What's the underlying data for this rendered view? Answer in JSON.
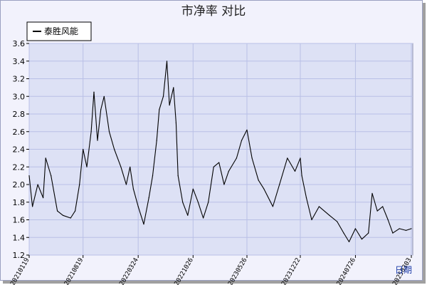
{
  "chart_data": {
    "type": "line",
    "title": "市净率  对比",
    "xlabel": "日期",
    "ylabel": "",
    "ylim": [
      1.2,
      3.6
    ],
    "yticks": [
      1.2,
      1.4,
      1.6,
      1.8,
      2.0,
      2.2,
      2.4,
      2.6,
      2.8,
      3.0,
      3.2,
      3.4,
      3.6
    ],
    "xtick_labels": [
      "20210119",
      "20210819",
      "20220324",
      "20221026",
      "20230526",
      "20231222",
      "20240726",
      "20250303"
    ],
    "grid": true,
    "legend_position": "top-left",
    "series": [
      {
        "name": "泰胜风能",
        "color": "#000000",
        "points": [
          [
            "20210119",
            2.1
          ],
          [
            "20210201",
            1.75
          ],
          [
            "20210222",
            2.0
          ],
          [
            "20210315",
            1.85
          ],
          [
            "20210325",
            2.3
          ],
          [
            "20210415",
            2.1
          ],
          [
            "20210510",
            1.7
          ],
          [
            "20210601",
            1.65
          ],
          [
            "20210701",
            1.62
          ],
          [
            "20210719",
            1.7
          ],
          [
            "20210805",
            2.0
          ],
          [
            "20210819",
            2.4
          ],
          [
            "20210903",
            2.2
          ],
          [
            "20210920",
            2.6
          ],
          [
            "20211001",
            3.05
          ],
          [
            "20211015",
            2.5
          ],
          [
            "20211028",
            2.85
          ],
          [
            "20211110",
            3.0
          ],
          [
            "20211130",
            2.6
          ],
          [
            "20211220",
            2.4
          ],
          [
            "20220115",
            2.2
          ],
          [
            "20220205",
            2.0
          ],
          [
            "20220220",
            2.2
          ],
          [
            "20220305",
            1.95
          ],
          [
            "20220324",
            1.75
          ],
          [
            "20220415",
            1.55
          ],
          [
            "20220505",
            1.85
          ],
          [
            "20220520",
            2.1
          ],
          [
            "20220605",
            2.5
          ],
          [
            "20220615",
            2.85
          ],
          [
            "20220701",
            3.0
          ],
          [
            "20220715",
            3.4
          ],
          [
            "20220725",
            2.9
          ],
          [
            "20220810",
            3.1
          ],
          [
            "20220820",
            2.7
          ],
          [
            "20220828",
            2.1
          ],
          [
            "20220915",
            1.8
          ],
          [
            "20221005",
            1.65
          ],
          [
            "20221026",
            1.95
          ],
          [
            "20221115",
            1.8
          ],
          [
            "20221205",
            1.62
          ],
          [
            "20221225",
            1.8
          ],
          [
            "20230115",
            2.2
          ],
          [
            "20230205",
            2.25
          ],
          [
            "20230225",
            2.0
          ],
          [
            "20230315",
            2.15
          ],
          [
            "20230415",
            2.3
          ],
          [
            "20230505",
            2.5
          ],
          [
            "20230526",
            2.62
          ],
          [
            "20230615",
            2.3
          ],
          [
            "20230710",
            2.05
          ],
          [
            "20230801",
            1.95
          ],
          [
            "20230905",
            1.75
          ],
          [
            "20231001",
            2.0
          ],
          [
            "20231101",
            2.3
          ],
          [
            "20231201",
            2.15
          ],
          [
            "20231222",
            2.3
          ],
          [
            "20231228",
            2.1
          ],
          [
            "20240115",
            1.85
          ],
          [
            "20240205",
            1.6
          ],
          [
            "20240305",
            1.75
          ],
          [
            "20240415",
            1.65
          ],
          [
            "20240515",
            1.58
          ],
          [
            "20240610",
            1.45
          ],
          [
            "20240701",
            1.35
          ],
          [
            "20240726",
            1.5
          ],
          [
            "20240820",
            1.38
          ],
          [
            "20240915",
            1.45
          ],
          [
            "20240930",
            1.9
          ],
          [
            "20241020",
            1.7
          ],
          [
            "20241110",
            1.75
          ],
          [
            "20241201",
            1.6
          ],
          [
            "20241220",
            1.45
          ],
          [
            "20250115",
            1.5
          ],
          [
            "20250210",
            1.48
          ],
          [
            "20250303",
            1.5
          ]
        ]
      }
    ]
  }
}
